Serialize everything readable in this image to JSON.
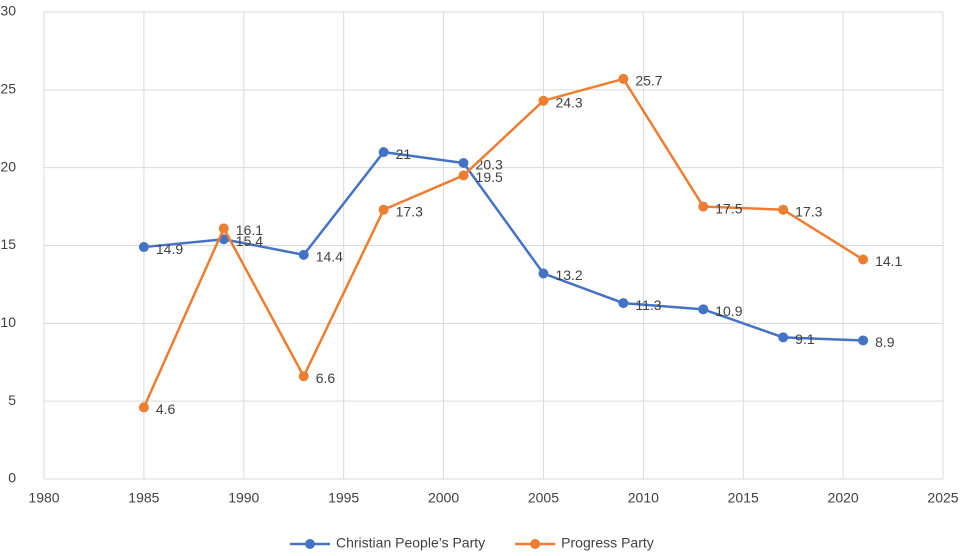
{
  "chart_data": {
    "type": "line",
    "x": [
      1985,
      1989,
      1993,
      1997,
      2001,
      2005,
      2009,
      2013,
      2017,
      2021
    ],
    "series": [
      {
        "name": "Christian People’s Party",
        "color": "#4472c4",
        "values": [
          14.9,
          15.4,
          14.4,
          21,
          20.3,
          13.2,
          11.3,
          10.9,
          9.1,
          8.9
        ]
      },
      {
        "name": "Progress Party",
        "color": "#ed7d31",
        "values": [
          4.6,
          16.1,
          6.6,
          17.3,
          19.5,
          24.3,
          25.7,
          17.5,
          17.3,
          14.1
        ]
      }
    ],
    "xlim": [
      1980,
      2025
    ],
    "xticks": [
      1980,
      1985,
      1990,
      1995,
      2000,
      2005,
      2010,
      2015,
      2020,
      2025
    ],
    "ylim": [
      0,
      30
    ],
    "yticks": [
      0,
      5,
      10,
      15,
      20,
      25,
      30
    ],
    "grid": true,
    "legend": "bottom"
  }
}
